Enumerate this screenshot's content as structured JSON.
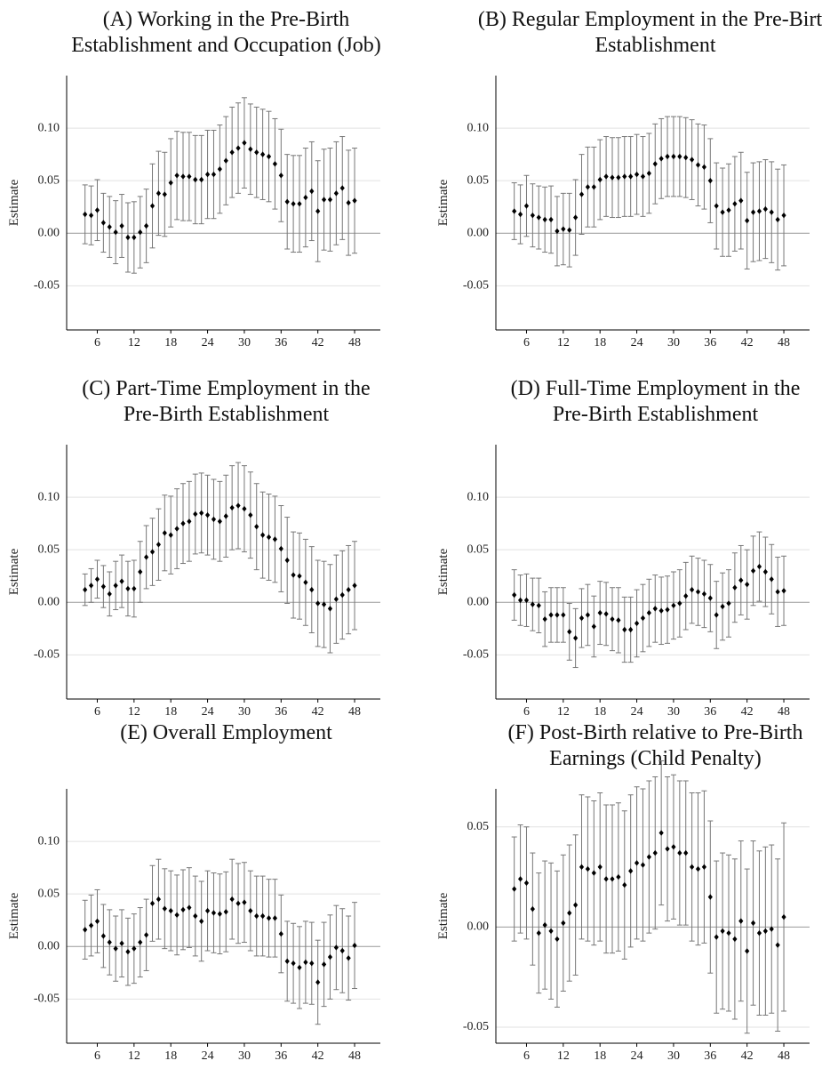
{
  "chart_data": [
    {
      "type": "errorbar",
      "title": [
        "(A) Working in the Pre-Birth",
        "Establishment and Occupation (Job)"
      ],
      "ylabel": "Estimate",
      "x": [
        4,
        5,
        6,
        7,
        8,
        9,
        10,
        11,
        12,
        13,
        14,
        15,
        16,
        17,
        18,
        19,
        20,
        21,
        22,
        23,
        24,
        25,
        26,
        27,
        28,
        29,
        30,
        31,
        32,
        33,
        34,
        35,
        36,
        37,
        38,
        39,
        40,
        41,
        42,
        43,
        44,
        45,
        46,
        47,
        48
      ],
      "values": [
        0.018,
        0.017,
        0.022,
        0.01,
        0.006,
        0.001,
        0.007,
        -0.004,
        -0.004,
        0.001,
        0.007,
        0.026,
        0.038,
        0.037,
        0.048,
        0.055,
        0.054,
        0.054,
        0.051,
        0.051,
        0.056,
        0.056,
        0.061,
        0.069,
        0.077,
        0.081,
        0.086,
        0.08,
        0.077,
        0.075,
        0.073,
        0.066,
        0.055,
        0.03,
        0.028,
        0.028,
        0.034,
        0.04,
        0.021,
        0.032,
        0.032,
        0.038,
        0.043,
        0.029,
        0.031
      ],
      "errors": [
        0.028,
        0.028,
        0.029,
        0.028,
        0.029,
        0.03,
        0.03,
        0.033,
        0.034,
        0.034,
        0.035,
        0.04,
        0.04,
        0.04,
        0.042,
        0.042,
        0.042,
        0.042,
        0.042,
        0.042,
        0.042,
        0.042,
        0.042,
        0.042,
        0.043,
        0.043,
        0.043,
        0.043,
        0.043,
        0.043,
        0.043,
        0.043,
        0.044,
        0.045,
        0.046,
        0.046,
        0.047,
        0.047,
        0.048,
        0.048,
        0.049,
        0.049,
        0.049,
        0.05,
        0.05
      ],
      "xlim": [
        1,
        52.2
      ],
      "ylim": [
        -0.092,
        0.15
      ],
      "xticks": [
        6,
        12,
        18,
        24,
        30,
        36,
        42,
        48
      ],
      "yticks": [
        -0.05,
        {
          "value": 0,
          "label": "0.00"
        },
        0.05,
        {
          "value": 0.1,
          "label": "0.10"
        }
      ],
      "grid": true,
      "color": "#000000",
      "error_color": "#777777"
    },
    {
      "type": "errorbar",
      "title": [
        "(B) Regular Employment in the Pre-Birth",
        "Establishment"
      ],
      "ylabel": "Estimate",
      "x": [
        4,
        5,
        6,
        7,
        8,
        9,
        10,
        11,
        12,
        13,
        14,
        15,
        16,
        17,
        18,
        19,
        20,
        21,
        22,
        23,
        24,
        25,
        26,
        27,
        28,
        29,
        30,
        31,
        32,
        33,
        34,
        35,
        36,
        37,
        38,
        39,
        40,
        41,
        42,
        43,
        44,
        45,
        46,
        47,
        48
      ],
      "values": [
        0.021,
        0.018,
        0.026,
        0.017,
        0.015,
        0.013,
        0.013,
        0.002,
        0.004,
        0.003,
        0.015,
        0.037,
        0.044,
        0.044,
        0.051,
        0.054,
        0.053,
        0.053,
        0.054,
        0.054,
        0.056,
        0.054,
        0.057,
        0.066,
        0.071,
        0.073,
        0.073,
        0.073,
        0.072,
        0.07,
        0.065,
        0.063,
        0.05,
        0.026,
        0.02,
        0.022,
        0.028,
        0.031,
        0.012,
        0.02,
        0.021,
        0.023,
        0.02,
        0.013,
        0.017
      ],
      "errors": [
        0.027,
        0.028,
        0.029,
        0.03,
        0.03,
        0.031,
        0.032,
        0.033,
        0.034,
        0.035,
        0.036,
        0.038,
        0.038,
        0.038,
        0.038,
        0.038,
        0.038,
        0.038,
        0.038,
        0.038,
        0.038,
        0.038,
        0.038,
        0.038,
        0.038,
        0.038,
        0.038,
        0.038,
        0.038,
        0.038,
        0.039,
        0.04,
        0.04,
        0.041,
        0.042,
        0.044,
        0.045,
        0.046,
        0.046,
        0.047,
        0.047,
        0.047,
        0.048,
        0.048,
        0.048
      ],
      "xlim": [
        1,
        52.2
      ],
      "ylim": [
        -0.092,
        0.15
      ],
      "xticks": [
        6,
        12,
        18,
        24,
        30,
        36,
        42,
        48
      ],
      "yticks": [
        -0.05,
        {
          "value": 0,
          "label": "0.00"
        },
        0.05,
        {
          "value": 0.1,
          "label": "0.10"
        }
      ],
      "grid": true,
      "color": "#000000",
      "error_color": "#777777"
    },
    {
      "type": "errorbar",
      "title": [
        "(C) Part-Time Employment in the",
        "Pre-Birth Establishment"
      ],
      "ylabel": "Estimate",
      "x": [
        4,
        5,
        6,
        7,
        8,
        9,
        10,
        11,
        12,
        13,
        14,
        15,
        16,
        17,
        18,
        19,
        20,
        21,
        22,
        23,
        24,
        25,
        26,
        27,
        28,
        29,
        30,
        31,
        32,
        33,
        34,
        35,
        36,
        37,
        38,
        39,
        40,
        41,
        42,
        43,
        44,
        45,
        46,
        47,
        48
      ],
      "values": [
        0.012,
        0.016,
        0.022,
        0.015,
        0.008,
        0.016,
        0.02,
        0.013,
        0.013,
        0.029,
        0.043,
        0.048,
        0.055,
        0.066,
        0.064,
        0.07,
        0.075,
        0.077,
        0.084,
        0.085,
        0.083,
        0.079,
        0.077,
        0.082,
        0.09,
        0.092,
        0.089,
        0.083,
        0.072,
        0.064,
        0.062,
        0.06,
        0.051,
        0.04,
        0.026,
        0.025,
        0.019,
        0.012,
        -0.001,
        -0.002,
        -0.006,
        0.003,
        0.007,
        0.012,
        0.016
      ],
      "errors": [
        0.015,
        0.016,
        0.018,
        0.02,
        0.021,
        0.023,
        0.025,
        0.026,
        0.027,
        0.029,
        0.03,
        0.032,
        0.034,
        0.036,
        0.037,
        0.038,
        0.038,
        0.038,
        0.038,
        0.038,
        0.038,
        0.038,
        0.038,
        0.039,
        0.04,
        0.041,
        0.041,
        0.041,
        0.041,
        0.041,
        0.041,
        0.041,
        0.041,
        0.041,
        0.041,
        0.041,
        0.041,
        0.041,
        0.041,
        0.041,
        0.042,
        0.042,
        0.042,
        0.042,
        0.042
      ],
      "xlim": [
        1,
        52.2
      ],
      "ylim": [
        -0.092,
        0.15
      ],
      "xticks": [
        6,
        12,
        18,
        24,
        30,
        36,
        42,
        48
      ],
      "yticks": [
        -0.05,
        {
          "value": 0,
          "label": "0.00"
        },
        0.05,
        {
          "value": 0.1,
          "label": "0.10"
        }
      ],
      "grid": true,
      "color": "#000000",
      "error_color": "#777777"
    },
    {
      "type": "errorbar",
      "title": [
        "(D) Full-Time Employment in the",
        "Pre-Birth Establishment"
      ],
      "ylabel": "Estimate",
      "x": [
        4,
        5,
        6,
        7,
        8,
        9,
        10,
        11,
        12,
        13,
        14,
        15,
        16,
        17,
        18,
        19,
        20,
        21,
        22,
        23,
        24,
        25,
        26,
        27,
        28,
        29,
        30,
        31,
        32,
        33,
        34,
        35,
        36,
        37,
        38,
        39,
        40,
        41,
        42,
        43,
        44,
        45,
        46,
        47,
        48
      ],
      "values": [
        0.007,
        0.002,
        0.002,
        -0.002,
        -0.003,
        -0.016,
        -0.012,
        -0.012,
        -0.012,
        -0.028,
        -0.034,
        -0.015,
        -0.012,
        -0.023,
        -0.01,
        -0.011,
        -0.016,
        -0.017,
        -0.026,
        -0.026,
        -0.02,
        -0.015,
        -0.01,
        -0.006,
        -0.008,
        -0.007,
        -0.003,
        -0.001,
        0.006,
        0.012,
        0.01,
        0.008,
        0.004,
        -0.012,
        -0.004,
        -0.001,
        0.014,
        0.021,
        0.017,
        0.03,
        0.034,
        0.029,
        0.022,
        0.01,
        0.011
      ],
      "errors": [
        0.024,
        0.024,
        0.025,
        0.025,
        0.026,
        0.026,
        0.026,
        0.026,
        0.026,
        0.027,
        0.028,
        0.028,
        0.029,
        0.029,
        0.03,
        0.03,
        0.03,
        0.031,
        0.031,
        0.031,
        0.032,
        0.032,
        0.032,
        0.032,
        0.032,
        0.032,
        0.032,
        0.032,
        0.032,
        0.032,
        0.032,
        0.032,
        0.032,
        0.032,
        0.032,
        0.032,
        0.033,
        0.033,
        0.033,
        0.033,
        0.033,
        0.033,
        0.033,
        0.033,
        0.033
      ],
      "xlim": [
        1,
        52.2
      ],
      "ylim": [
        -0.092,
        0.15
      ],
      "xticks": [
        6,
        12,
        18,
        24,
        30,
        36,
        42,
        48
      ],
      "yticks": [
        -0.05,
        {
          "value": 0,
          "label": "0.00"
        },
        0.05,
        {
          "value": 0.1,
          "label": "0.10"
        }
      ],
      "grid": true,
      "color": "#000000",
      "error_color": "#777777"
    },
    {
      "type": "errorbar",
      "title": [
        "(E) Overall Employment"
      ],
      "ylabel": "Estimate",
      "x": [
        4,
        5,
        6,
        7,
        8,
        9,
        10,
        11,
        12,
        13,
        14,
        15,
        16,
        17,
        18,
        19,
        20,
        21,
        22,
        23,
        24,
        25,
        26,
        27,
        28,
        29,
        30,
        31,
        32,
        33,
        34,
        35,
        36,
        37,
        38,
        39,
        40,
        41,
        42,
        43,
        44,
        45,
        46,
        47,
        48
      ],
      "values": [
        0.016,
        0.02,
        0.024,
        0.01,
        0.004,
        -0.002,
        0.003,
        -0.005,
        -0.002,
        0.004,
        0.011,
        0.041,
        0.045,
        0.036,
        0.034,
        0.03,
        0.035,
        0.037,
        0.029,
        0.024,
        0.034,
        0.032,
        0.031,
        0.033,
        0.045,
        0.041,
        0.042,
        0.034,
        0.029,
        0.029,
        0.027,
        0.027,
        0.012,
        -0.014,
        -0.016,
        -0.02,
        -0.015,
        -0.016,
        -0.034,
        -0.017,
        -0.01,
        -0.001,
        -0.004,
        -0.011,
        0.001
      ],
      "errors": [
        0.028,
        0.029,
        0.03,
        0.03,
        0.031,
        0.031,
        0.032,
        0.032,
        0.033,
        0.033,
        0.034,
        0.036,
        0.038,
        0.038,
        0.038,
        0.038,
        0.038,
        0.038,
        0.038,
        0.038,
        0.038,
        0.038,
        0.038,
        0.038,
        0.038,
        0.038,
        0.038,
        0.038,
        0.038,
        0.038,
        0.037,
        0.037,
        0.037,
        0.038,
        0.038,
        0.039,
        0.039,
        0.039,
        0.04,
        0.04,
        0.04,
        0.04,
        0.04,
        0.04,
        0.041
      ],
      "xlim": [
        1,
        52.2
      ],
      "ylim": [
        -0.092,
        0.15
      ],
      "xticks": [
        6,
        12,
        18,
        24,
        30,
        36,
        42,
        48
      ],
      "yticks": [
        -0.05,
        {
          "value": 0,
          "label": "0.00"
        },
        0.05,
        {
          "value": 0.1,
          "label": "0.10"
        }
      ],
      "grid": true,
      "color": "#000000",
      "error_color": "#777777"
    },
    {
      "type": "errorbar",
      "title": [
        "(F) Post-Birth relative to Pre-Birth",
        "Earnings (Child Penalty)"
      ],
      "ylabel": "Estimate",
      "x": [
        4,
        5,
        6,
        7,
        8,
        9,
        10,
        11,
        12,
        13,
        14,
        15,
        16,
        17,
        18,
        19,
        20,
        21,
        22,
        23,
        24,
        25,
        26,
        27,
        28,
        29,
        30,
        31,
        32,
        33,
        34,
        35,
        36,
        37,
        38,
        39,
        40,
        41,
        42,
        43,
        44,
        45,
        46,
        47,
        48
      ],
      "values": [
        0.019,
        0.024,
        0.022,
        0.009,
        -0.003,
        0.001,
        -0.002,
        -0.006,
        0.002,
        0.007,
        0.011,
        0.03,
        0.029,
        0.027,
        0.03,
        0.024,
        0.024,
        0.025,
        0.021,
        0.028,
        0.032,
        0.031,
        0.035,
        0.037,
        0.047,
        0.039,
        0.04,
        0.037,
        0.037,
        0.03,
        0.029,
        0.03,
        0.015,
        -0.005,
        -0.002,
        -0.003,
        -0.006,
        0.003,
        -0.012,
        0.002,
        -0.003,
        -0.002,
        -0.001,
        -0.009,
        0.005
      ],
      "errors": [
        0.026,
        0.027,
        0.028,
        0.028,
        0.03,
        0.032,
        0.034,
        0.034,
        0.034,
        0.034,
        0.035,
        0.036,
        0.036,
        0.036,
        0.037,
        0.037,
        0.037,
        0.037,
        0.037,
        0.038,
        0.038,
        0.038,
        0.038,
        0.038,
        0.036,
        0.036,
        0.036,
        0.036,
        0.036,
        0.037,
        0.038,
        0.038,
        0.038,
        0.038,
        0.039,
        0.039,
        0.04,
        0.04,
        0.041,
        0.041,
        0.041,
        0.042,
        0.042,
        0.043,
        0.047
      ],
      "xlim": [
        1,
        52.2
      ],
      "ylim": [
        -0.058,
        0.069
      ],
      "xticks": [
        6,
        12,
        18,
        24,
        30,
        36,
        42,
        48
      ],
      "yticks": [
        -0.05,
        {
          "value": 0,
          "label": "0.00"
        },
        0.05
      ],
      "grid": true,
      "color": "#000000",
      "error_color": "#777777"
    }
  ]
}
